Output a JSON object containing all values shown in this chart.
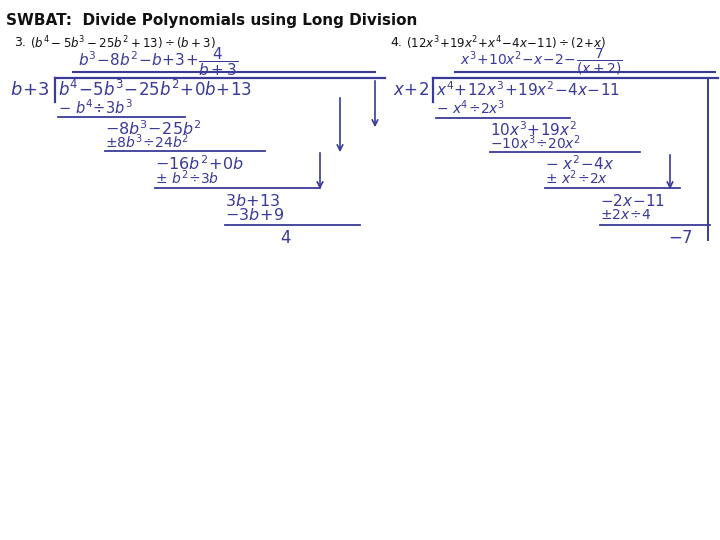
{
  "title": "SWBAT:  Divide Polynomials using Long Division",
  "bg_color": "#ffffff",
  "ink_color": "#3a3a99",
  "black": "#111111",
  "figsize": [
    7.2,
    5.4
  ],
  "dpi": 100
}
